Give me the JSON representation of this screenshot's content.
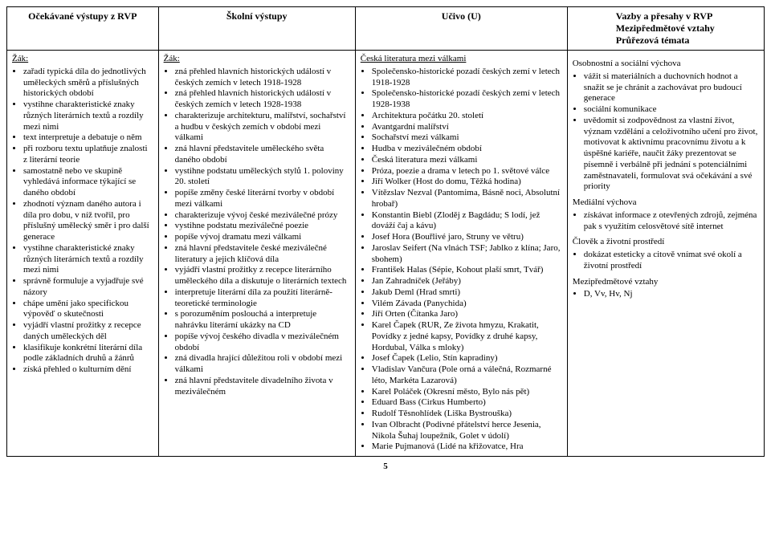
{
  "columns": {
    "widths": [
      "20%",
      "26%",
      "28%",
      "26%"
    ]
  },
  "header": {
    "col1": "Očekávané výstupy z RVP",
    "col2": "Školní výstupy",
    "col3": "Učivo (U)",
    "col4_line1": "Vazby a přesahy v RVP",
    "col4_line2": "Mezipředmětové vztahy",
    "col4_line3": "Průřezová témata"
  },
  "col1": {
    "label": "Žák:",
    "items": [
      "zařadí typická díla do jednotlivých uměleckých směrů a příslušných historických období",
      "vystihne charakteristické znaky různých literárních textů a rozdíly mezi nimi",
      "text interpretuje a debatuje o něm",
      "při rozboru textu uplatňuje znalosti z literární teorie",
      "samostatně nebo ve skupině vyhledává informace týkající se daného období",
      "zhodnotí význam daného autora i díla pro dobu, v níž tvořil, pro příslušný umělecký směr i pro další generace",
      "vystihne charakteristické znaky různých literárních textů a rozdíly mezi nimi",
      "správně formuluje a vyjadřuje své názory",
      "chápe umění jako specifickou výpověď o skutečnosti",
      "vyjádří vlastní prožitky z recepce daných uměleckých děl",
      "klasifikuje konkrétní literární díla podle základních druhů a žánrů",
      "získá přehled o kulturním dění"
    ]
  },
  "col2": {
    "label": "Žák:",
    "items": [
      "zná přehled hlavních historických událostí v českých zemích v letech 1918-1928",
      "zná přehled hlavních historických událostí v českých zemích v letech 1928-1938",
      "charakterizuje architekturu, malířství, sochařství a hudbu v českých zemích v období mezi válkami",
      "zná hlavní představitele uměleckého světa daného období",
      "vystihne podstatu uměleckých stylů 1. poloviny 20. století",
      "popíše změny české literární tvorby v období mezi válkami",
      "charakterizuje vývoj české meziválečné prózy",
      "vystihne podstatu meziválečné poezie",
      "popíše vývoj dramatu mezi válkami",
      "zná hlavní představitele české meziválečné literatury a jejich klíčová díla",
      "vyjádří vlastní prožitky z recepce literárního uměleckého díla a diskutuje o literárních textech",
      "interpretuje literární díla za použití literárně-teoretické terminologie",
      "s porozuměním poslouchá a interpretuje nahrávku literární ukázky na CD",
      "popíše vývoj českého divadla v meziválečném období",
      "zná divadla hrající důležitou roli v období mezi válkami",
      "zná hlavní představitele divadelního života v meziválečném"
    ]
  },
  "col3": {
    "heading": "Česká literatura mezi válkami",
    "items": [
      "Společensko-historické pozadí českých zemí v letech 1918-1928",
      "Společensko-historické pozadí českých zemí v letech 1928-1938",
      "Architektura počátku 20. století",
      "Avantgardní malířství",
      "Sochařství mezi válkami",
      "Hudba v meziválečném období",
      "Česká literatura mezi válkami",
      "Próza, poezie a drama v letech po 1. světové válce",
      "Jiří Wolker (Host do domu, Těžká hodina)",
      "Vítězslav Nezval (Pantomima, Básně noci, Absolutní hrobař)",
      "Konstantin Biebl (Zloděj z Bagdádu; S lodí, jež dováží čaj a kávu)",
      "Josef Hora (Bouřlivé jaro, Struny ve větru)",
      "Jaroslav Seifert (Na vlnách TSF; Jablko z klína; Jaro, sbohem)",
      "František Halas (Sépie, Kohout plaší smrt, Tvář)",
      "Jan Zahradníček (Jeřáby)",
      "Jakub Deml (Hrad smrti)",
      "Vilém Závada (Panychida)",
      "Jiří Orten (Čítanka Jaro)",
      "Karel Čapek (RUR, Ze života hmyzu, Krakatit, Povídky z jedné kapsy, Povídky z druhé kapsy, Hordubal, Válka s mloky)",
      "Josef Čapek (Lelio, Stín kapradiny)",
      "Vladislav Vančura (Pole orná a válečná, Rozmarné léto, Markéta Lazarová)",
      "Karel Poláček (Okresní město, Bylo nás pět)",
      "Eduard Bass (Cirkus Humberto)",
      "Rudolf Těsnohlídek (Liška Bystrouška)",
      "Ivan Olbracht (Podivné přátelství herce Jesenia, Nikola Šuhaj loupežník, Golet v údolí)",
      "Marie Pujmanová (Lidé na křižovatce, Hra"
    ]
  },
  "col4": {
    "sections": [
      {
        "heading": "Osobnostní a sociální výchova",
        "items": [
          "vážit si materiálních a duchovních hodnot a snažit se je chránit a zachovávat pro budoucí generace",
          "sociální komunikace",
          "uvědomit si zodpovědnost za vlastní život, význam vzdělání a celoživotního učení pro život, motivovat k aktivnímu pracovnímu životu a k úspěšné kariéře, naučit žáky prezentovat se písemně i verbálně při jednání s potenciálními zaměstnavateli, formulovat svá očekávání a své priority"
        ]
      },
      {
        "heading": "Mediální výchova",
        "items": [
          "získávat informace z otevřených zdrojů, zejména pak s využitím celosvětové sítě internet"
        ]
      },
      {
        "heading": "Člověk a životní prostředí",
        "items": [
          "dokázat esteticky a citově vnímat své okolí a životní prostředí"
        ]
      },
      {
        "heading": "Mezipředmětové vztahy",
        "items": [
          "D, Vv, Hv, Nj"
        ]
      }
    ]
  },
  "page_number": "5"
}
